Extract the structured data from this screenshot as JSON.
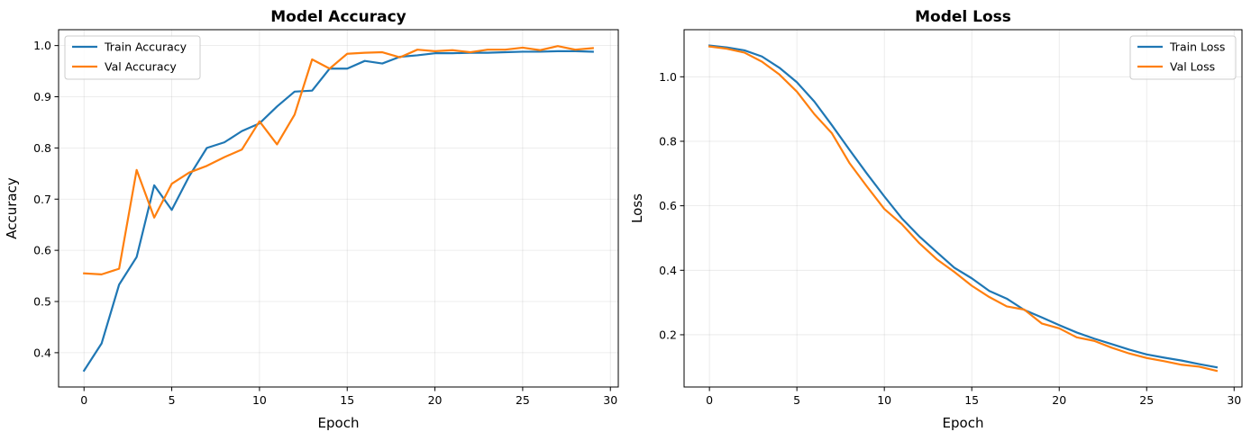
{
  "chart_data": [
    {
      "type": "line",
      "title": "Model Accuracy",
      "xlabel": "Epoch",
      "ylabel": "Accuracy",
      "xlim": [
        -1.45,
        30.45
      ],
      "ylim": [
        0.333,
        1.031
      ],
      "xticks": [
        0,
        5,
        10,
        15,
        20,
        25,
        30
      ],
      "yticks": [
        0.4,
        0.5,
        0.6,
        0.7,
        0.8,
        0.9,
        1.0
      ],
      "ytick_labels": [
        "0.4",
        "0.5",
        "0.6",
        "0.7",
        "0.8",
        "0.9",
        "1.0"
      ],
      "grid": true,
      "legend_position": "top-left",
      "x": [
        0,
        1,
        2,
        3,
        4,
        5,
        6,
        7,
        8,
        9,
        10,
        11,
        12,
        13,
        14,
        15,
        16,
        17,
        18,
        19,
        20,
        21,
        22,
        23,
        24,
        25,
        26,
        27,
        28,
        29
      ],
      "series": [
        {
          "name": "Train Accuracy",
          "color": "#1f77b4",
          "values": [
            0.365,
            0.418,
            0.533,
            0.587,
            0.727,
            0.679,
            0.745,
            0.8,
            0.811,
            0.833,
            0.848,
            0.881,
            0.91,
            0.912,
            0.955,
            0.955,
            0.97,
            0.965,
            0.978,
            0.981,
            0.985,
            0.985,
            0.986,
            0.986,
            0.987,
            0.988,
            0.988,
            0.989,
            0.989,
            0.988
          ]
        },
        {
          "name": "Val Accuracy",
          "color": "#ff7f0e",
          "values": [
            0.555,
            0.553,
            0.564,
            0.757,
            0.664,
            0.73,
            0.752,
            0.765,
            0.782,
            0.797,
            0.852,
            0.807,
            0.865,
            0.973,
            0.955,
            0.984,
            0.986,
            0.987,
            0.977,
            0.992,
            0.989,
            0.991,
            0.987,
            0.992,
            0.992,
            0.996,
            0.991,
            0.999,
            0.992,
            0.995
          ]
        }
      ]
    },
    {
      "type": "line",
      "title": "Model Loss",
      "xlabel": "Epoch",
      "ylabel": "Loss",
      "xlim": [
        -1.45,
        30.45
      ],
      "ylim": [
        0.038,
        1.146
      ],
      "xticks": [
        0,
        5,
        10,
        15,
        20,
        25,
        30
      ],
      "yticks": [
        0.2,
        0.4,
        0.6,
        0.8,
        1.0
      ],
      "ytick_labels": [
        "0.2",
        "0.4",
        "0.6",
        "0.8",
        "1.0"
      ],
      "grid": true,
      "legend_position": "top-right",
      "x": [
        0,
        1,
        2,
        3,
        4,
        5,
        6,
        7,
        8,
        9,
        10,
        11,
        12,
        13,
        14,
        15,
        16,
        17,
        18,
        19,
        20,
        21,
        22,
        23,
        24,
        25,
        26,
        27,
        28,
        29
      ],
      "series": [
        {
          "name": "Train Loss",
          "color": "#1f77b4",
          "values": [
            1.097,
            1.091,
            1.082,
            1.063,
            1.028,
            0.983,
            0.923,
            0.85,
            0.774,
            0.7,
            0.629,
            0.561,
            0.505,
            0.456,
            0.408,
            0.375,
            0.336,
            0.312,
            0.277,
            0.254,
            0.23,
            0.207,
            0.188,
            0.171,
            0.154,
            0.139,
            0.129,
            0.12,
            0.109,
            0.099
          ]
        },
        {
          "name": "Val Loss",
          "color": "#ff7f0e",
          "values": [
            1.094,
            1.087,
            1.075,
            1.047,
            1.007,
            0.954,
            0.884,
            0.825,
            0.733,
            0.66,
            0.59,
            0.543,
            0.484,
            0.434,
            0.395,
            0.352,
            0.317,
            0.288,
            0.278,
            0.235,
            0.22,
            0.192,
            0.181,
            0.16,
            0.142,
            0.128,
            0.118,
            0.107,
            0.101,
            0.088
          ]
        }
      ]
    }
  ]
}
